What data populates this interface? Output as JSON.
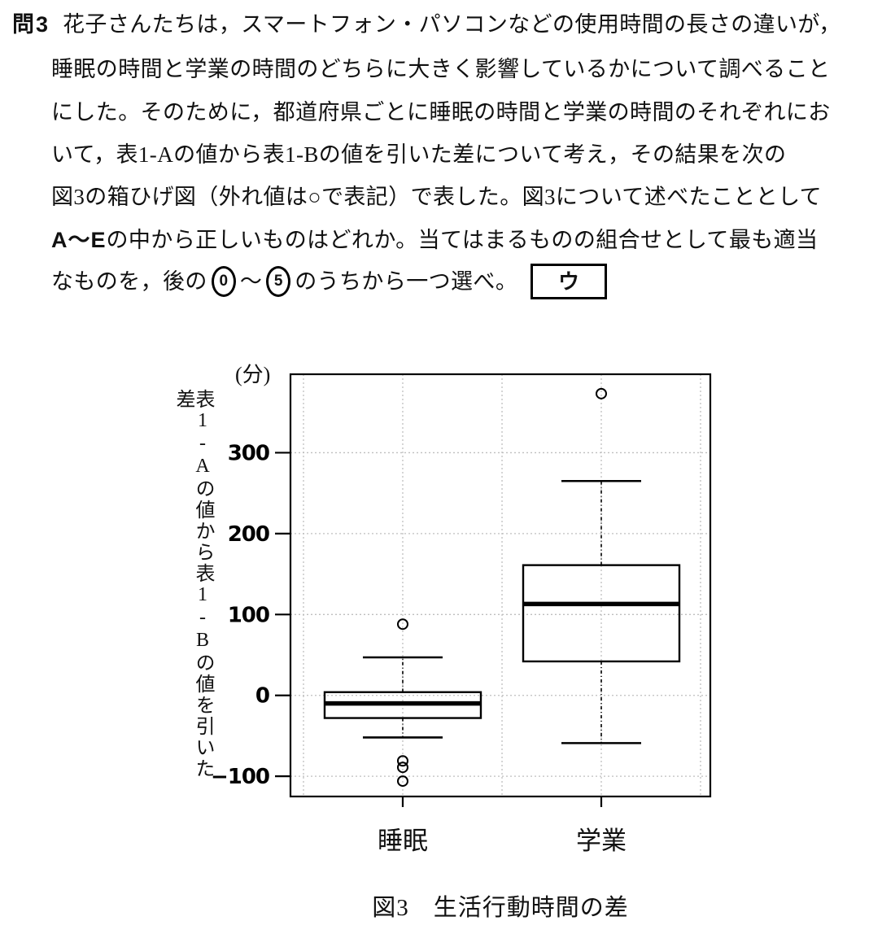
{
  "question": {
    "label": "問3",
    "line1": "花子さんたちは，スマートフォン・パソコンなどの使用時間の長さの違いが，",
    "line2": "睡眠の時間と学業の時間のどちらに大きく影響しているかについて調べること",
    "line3": "にした。そのために，都道府県ごとに睡眠の時間と学業の時間のそれぞれにお",
    "line4": "いて，表1-Aの値から表1-Bの値を引いた差について考え，その結果を次の",
    "line5": "図3の箱ひげ図（外れ値は○で表記）で表した。図3について述べたこととして",
    "line6_bold": "A～E",
    "line6_rest": "の中から正しいものはどれか。当てはまるものの組合せとして最も適当",
    "line7_pre": "なものを，後の",
    "choice_first": "0",
    "tilde": "～",
    "choice_last": "5",
    "line7_post": "のうちから一つ選べ。",
    "answer_box": "ウ"
  },
  "chart_data": {
    "type": "boxplot",
    "unit_label": "(分)",
    "ylabel": "表1-Aの値から表1-Bの値を引いた差",
    "categories": [
      "睡眠",
      "学業"
    ],
    "series": [
      {
        "name": "睡眠",
        "whisker_low": -52,
        "q1": -28,
        "median": -10,
        "q3": 4,
        "whisker_high": 47,
        "outliers": [
          88,
          -81,
          -89,
          -106
        ]
      },
      {
        "name": "学業",
        "whisker_low": -59,
        "q1": 42,
        "median": 113,
        "q3": 161,
        "whisker_high": 265,
        "outliers": [
          373
        ]
      }
    ],
    "y_ticks": [
      {
        "value": 300,
        "label": "300"
      },
      {
        "value": 200,
        "label": "200"
      },
      {
        "value": 100,
        "label": "100"
      },
      {
        "value": 0,
        "label": "0"
      },
      {
        "value": -100,
        "label": "−100"
      }
    ],
    "ylim": [
      -125,
      397
    ],
    "grid": "dotted",
    "legend": "none",
    "outlier_marker": "○",
    "caption": "図3　生活行動時間の差"
  }
}
